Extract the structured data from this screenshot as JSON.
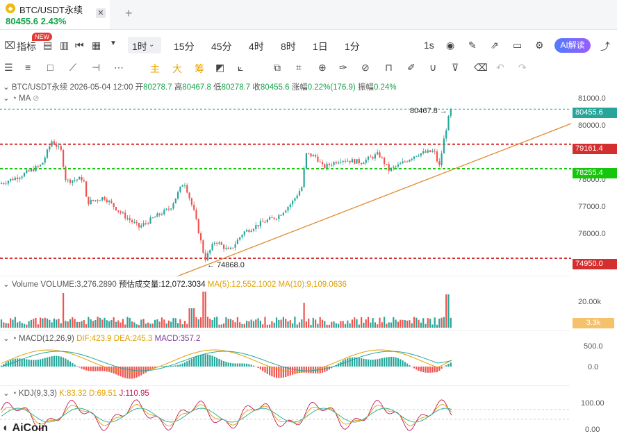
{
  "tab": {
    "title": "BTC/USDT永续",
    "price": "80455.6",
    "change": "2.43%",
    "close": "✕",
    "add": "+"
  },
  "toolbar1": {
    "indicator_label": "指标",
    "new_badge": "NEW",
    "timeframes": [
      "1时",
      "15分",
      "45分",
      "4时",
      "8时",
      "1日",
      "1分"
    ],
    "active_timeframe": "1时",
    "interval": "1s",
    "ai_label": "AI解读"
  },
  "toolbar2": {
    "zhu": "主",
    "da": "大",
    "chou": "筹"
  },
  "info": {
    "symbol": "BTC/USDT永续",
    "datetime": "2026-05-04 12:00",
    "open_label": "开",
    "open": "80278.7",
    "high_label": "高",
    "high": "80467.8",
    "low_label": "低",
    "low": "80278.7",
    "close_label": "收",
    "close": "80455.6",
    "change_label": "涨幅",
    "change": "0.22%(176.9)",
    "amp_label": "振幅",
    "amp": "0.24%",
    "ma_label": "MA"
  },
  "price_axis": {
    "ticks": [
      "81000.0",
      "80000.0",
      "79000.0",
      "78000.0",
      "77000.0",
      "76000.0"
    ],
    "current": "80455.6",
    "level1": "79161.4",
    "level2": "78255.4",
    "level3": "74950.0",
    "high_note": "80467.8",
    "low_note": "74868.0"
  },
  "volume": {
    "label": "Volume",
    "vol": "VOLUME:3,276.2890",
    "est": "预估成交量:12,072.3034",
    "ma5": "MA(5):12,552.1002",
    "ma10": "MA(10):9,109.0636",
    "axis_top": "20.00k",
    "axis_badge": "3.3k"
  },
  "macd": {
    "label": "MACD(12,26,9)",
    "dif": "DIF:423.9",
    "dea": "DEA:245.3",
    "macd": "MACD:357.2",
    "axis_top": "500.0",
    "axis_zero": "0.0"
  },
  "kdj": {
    "label": "KDJ(9,3,3)",
    "k": "K:83.32",
    "d": "D:69.51",
    "j": "J:110.95",
    "axis_top": "100.00",
    "axis_bottom": "0.00"
  },
  "brand": "AiCoin",
  "colors": {
    "up": "#26a69a",
    "down": "#ef5350",
    "red_line": "#d32f2f",
    "green_line": "#16c60c",
    "trend": "#e08a2c",
    "ai": "#6b6cff"
  }
}
